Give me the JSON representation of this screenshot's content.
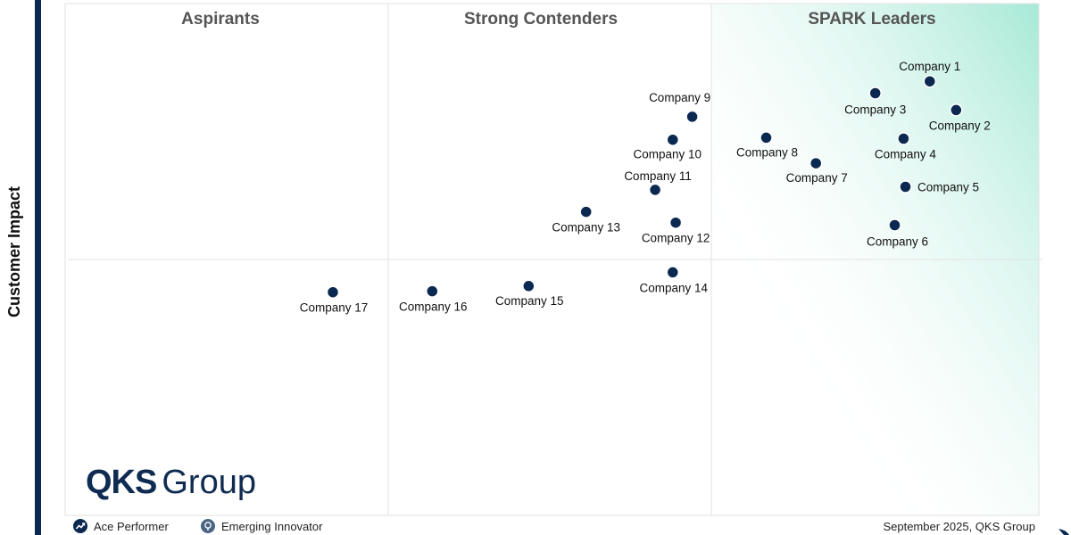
{
  "y_axis_label": "Customer Impact",
  "quadrant_labels": [
    "Aspirants",
    "Strong Contenders",
    "SPARK Leaders"
  ],
  "colors": {
    "point": "#0b2850",
    "leader_gradient_from": "#a6e9d6",
    "left_bar": "#0b2850",
    "grid": "#e2e2e2"
  },
  "chart_data": {
    "type": "scatter",
    "xlabel": "",
    "ylabel": "Customer Impact",
    "xlim": [
      0,
      100
    ],
    "ylim": [
      0,
      100
    ],
    "quadrant_dividers": {
      "x": [
        33.3,
        66.7
      ],
      "y": 50
    },
    "points": [
      {
        "label": "Company 1",
        "x": 88.8,
        "y": 84.8
      },
      {
        "label": "Company 2",
        "x": 91.5,
        "y": 79.2
      },
      {
        "label": "Company 3",
        "x": 83.2,
        "y": 82.5
      },
      {
        "label": "Company 4",
        "x": 86.1,
        "y": 73.6
      },
      {
        "label": "Company 5",
        "x": 86.3,
        "y": 64.2
      },
      {
        "label": "Company 6",
        "x": 85.2,
        "y": 56.7
      },
      {
        "label": "Company 7",
        "x": 77.1,
        "y": 68.8
      },
      {
        "label": "Company 8",
        "x": 72.0,
        "y": 73.8
      },
      {
        "label": "Company 9",
        "x": 64.4,
        "y": 77.9
      },
      {
        "label": "Company 10",
        "x": 62.4,
        "y": 73.4
      },
      {
        "label": "Company 11",
        "x": 60.6,
        "y": 63.6
      },
      {
        "label": "Company 12",
        "x": 62.7,
        "y": 57.2
      },
      {
        "label": "Company 13",
        "x": 53.5,
        "y": 59.3
      },
      {
        "label": "Company 14",
        "x": 62.4,
        "y": 47.5
      },
      {
        "label": "Company 15",
        "x": 47.6,
        "y": 44.8
      },
      {
        "label": "Company 16",
        "x": 37.7,
        "y": 43.8
      },
      {
        "label": "Company 17",
        "x": 27.5,
        "y": 43.6
      }
    ]
  },
  "logo": {
    "bold": "QKS",
    "regular": "Group"
  },
  "legend": [
    {
      "label": "Ace Performer",
      "icon": "ace-performer-icon"
    },
    {
      "label": "Emerging Innovator",
      "icon": "emerging-innovator-icon"
    }
  ],
  "footer_date": "September 2025, QKS Group"
}
